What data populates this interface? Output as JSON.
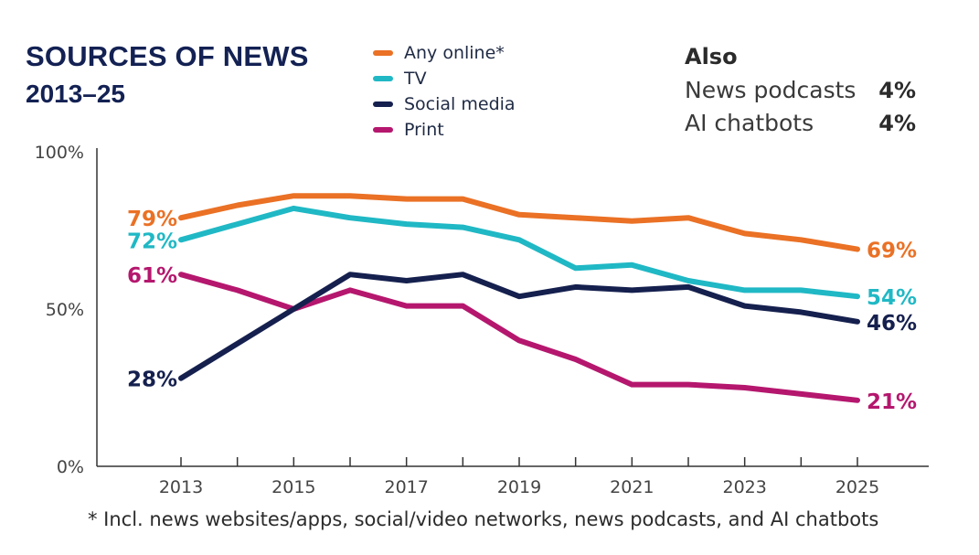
{
  "title": "SOURCES OF NEWS",
  "subtitle": "2013–25",
  "footnote": "* Incl. news websites/apps, social/video networks, news podcasts, and AI chatbots",
  "also": {
    "title": "Also",
    "items": [
      {
        "label": "News podcasts",
        "value": "4%"
      },
      {
        "label": "AI chatbots",
        "value": "4%"
      }
    ]
  },
  "chart_data": {
    "type": "line",
    "x": [
      2013,
      2014,
      2015,
      2016,
      2017,
      2018,
      2019,
      2020,
      2021,
      2022,
      2023,
      2024,
      2025
    ],
    "xticks": [
      2013,
      2015,
      2017,
      2019,
      2021,
      2023,
      2025
    ],
    "xticklabels": [
      "2013",
      "2015",
      "2017",
      "2019",
      "2021",
      "2023",
      "2025"
    ],
    "ylim": [
      0,
      100
    ],
    "yticks": [
      0,
      50,
      100
    ],
    "yticklabels": [
      "0%",
      "50%",
      "100%"
    ],
    "grid": false,
    "legend_position": "top-center",
    "series": [
      {
        "name": "Any online*",
        "color": "#ea7125",
        "values": [
          79,
          83,
          86,
          86,
          85,
          85,
          80,
          79,
          78,
          79,
          74,
          72,
          69
        ],
        "start_label": "79%",
        "end_label": "69%"
      },
      {
        "name": "TV",
        "color": "#20b8c5",
        "values": [
          72,
          77,
          82,
          79,
          77,
          76,
          72,
          63,
          64,
          59,
          56,
          56,
          54
        ],
        "start_label": "72%",
        "end_label": "54%"
      },
      {
        "name": "Social media",
        "color": "#15204e",
        "values": [
          28,
          39,
          50,
          61,
          59,
          61,
          54,
          57,
          56,
          57,
          51,
          49,
          46
        ],
        "start_label": "28%",
        "end_label": "46%"
      },
      {
        "name": "Print",
        "color": "#b5176e",
        "values": [
          61,
          56,
          50,
          56,
          51,
          51,
          40,
          34,
          26,
          26,
          25,
          23,
          21
        ],
        "start_label": "61%",
        "end_label": "21%"
      }
    ]
  }
}
